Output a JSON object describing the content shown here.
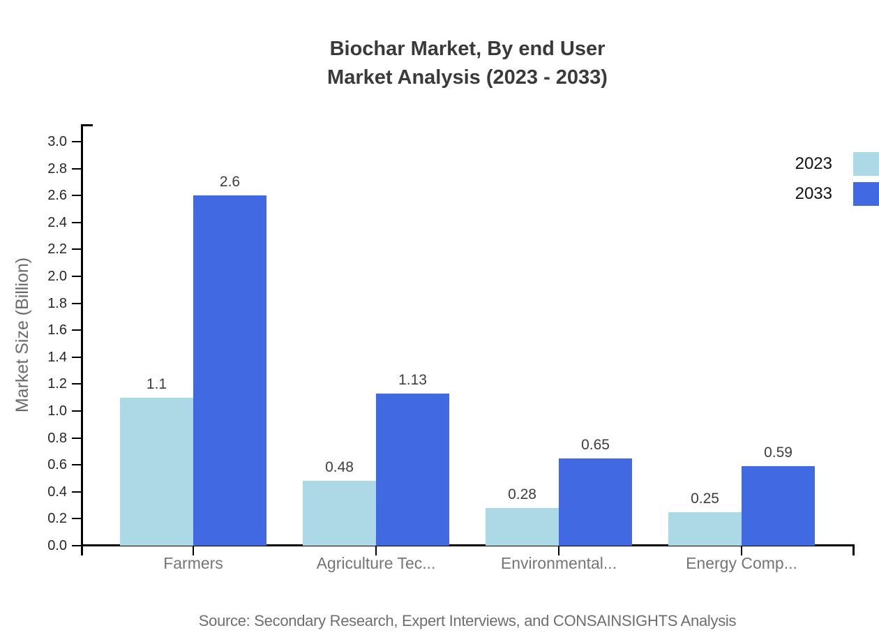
{
  "title": {
    "line1": "Biochar Market, By end User",
    "line2": "Market Analysis (2023 - 2033)"
  },
  "source": "Source: Secondary Research, Expert Interviews, and CONSAINSIGHTS Analysis",
  "chart_data": {
    "type": "bar",
    "title": "Biochar Market, By end User Market Analysis (2023 - 2033)",
    "categories": [
      "Farmers",
      "Agriculture Tec...",
      "Environmental...",
      "Energy Comp..."
    ],
    "series": [
      {
        "name": "2023",
        "color": "#ADD8E6",
        "values": [
          1.1,
          0.48,
          0.28,
          0.25
        ]
      },
      {
        "name": "2033",
        "color": "#4169E1",
        "values": [
          2.6,
          1.13,
          0.65,
          0.59
        ]
      }
    ],
    "xlabel": "",
    "ylabel": "Market Size (Billion)",
    "ylim": [
      0,
      3.0
    ],
    "y_tick_step": 0.2,
    "grid": false,
    "legend_position": "top-right",
    "axis_color": "#000000",
    "tick_label_color": "#262626",
    "category_label_color": "#757575",
    "value_label_color": "#3d3d3d"
  }
}
